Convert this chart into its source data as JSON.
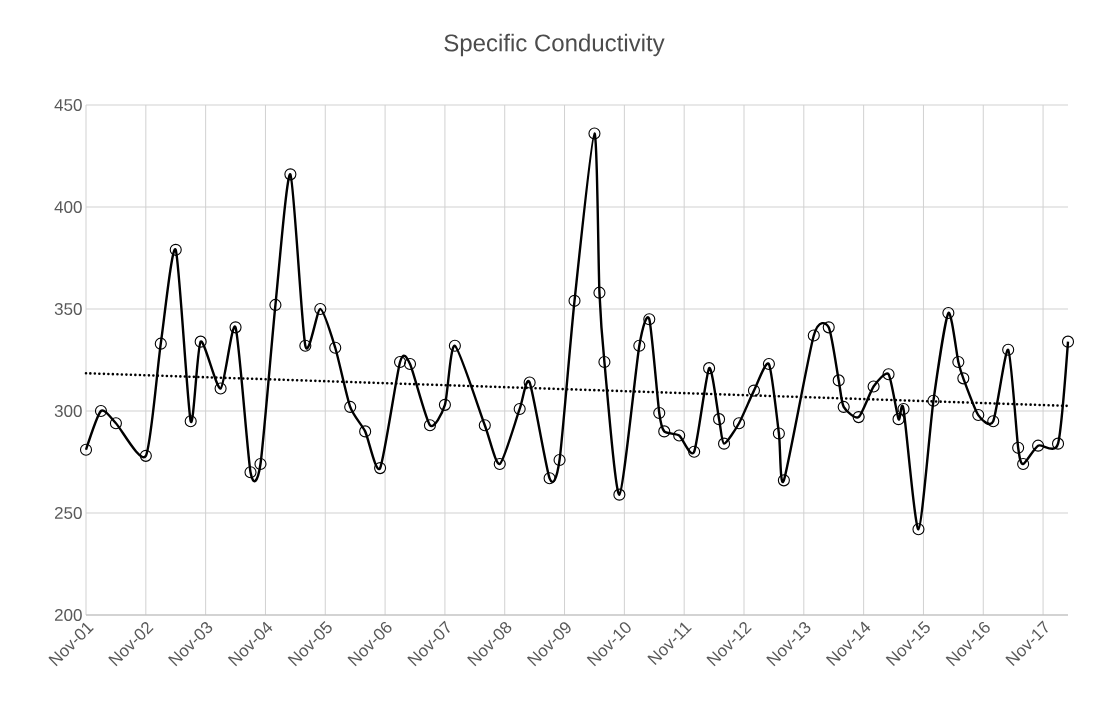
{
  "chart_data": {
    "type": "line",
    "title": "Specific Conductivity",
    "x": [
      "2001-11",
      "2002-02",
      "2002-05",
      "2002-11",
      "2003-02",
      "2003-05",
      "2003-08",
      "2003-10",
      "2004-02",
      "2004-05",
      "2004-08",
      "2004-10",
      "2005-01",
      "2005-04",
      "2005-07",
      "2005-10",
      "2006-01",
      "2006-04",
      "2006-07",
      "2006-10",
      "2007-02",
      "2007-04",
      "2007-08",
      "2007-11",
      "2008-01",
      "2008-07",
      "2008-10",
      "2009-02",
      "2009-04",
      "2009-08",
      "2009-10",
      "2010-01",
      "2010-05",
      "2010-06",
      "2010-07",
      "2010-10",
      "2011-02",
      "2011-04",
      "2011-06",
      "2011-07",
      "2011-10",
      "2012-01",
      "2012-04",
      "2012-06",
      "2012-07",
      "2012-10",
      "2013-01",
      "2013-04",
      "2013-06",
      "2013-07",
      "2014-01",
      "2014-04",
      "2014-06",
      "2014-07",
      "2014-10",
      "2015-01",
      "2015-04",
      "2015-06",
      "2015-07",
      "2015-10",
      "2016-01",
      "2016-04",
      "2016-06",
      "2016-07",
      "2016-10",
      "2017-01",
      "2017-04",
      "2017-06",
      "2017-07",
      "2017-10",
      "2018-02",
      "2018-04"
    ],
    "series": [
      {
        "color": "#000000",
        "values": [
          281,
          300,
          294,
          278,
          333,
          379,
          295,
          334,
          311,
          341,
          270,
          274,
          352,
          416,
          332,
          350,
          331,
          302,
          290,
          272,
          324,
          323,
          293,
          303,
          332,
          293,
          274,
          301,
          314,
          267,
          276,
          354,
          436,
          358,
          324,
          259,
          332,
          345,
          299,
          290,
          288,
          280,
          321,
          296,
          284,
          294,
          310,
          323,
          289,
          266,
          337,
          341,
          315,
          302,
          297,
          312,
          318,
          296,
          301,
          242,
          305,
          348,
          324,
          316,
          298,
          295,
          330,
          282,
          274,
          283,
          284,
          334
        ]
      },
      {
        "type": "line",
        "color": "#000000",
        "x": [
          "2001-11",
          "2018-04"
        ],
        "values": [
          318.5,
          302.5
        ],
        "marker": "none",
        "line_style": "dotted"
      }
    ],
    "marker": "circle",
    "xlim": [
      "2001-11",
      "2018-04"
    ],
    "xticks": [
      {
        "value": "2001-11",
        "label": "Nov-01"
      },
      {
        "value": "2002-11",
        "label": "Nov-02"
      },
      {
        "value": "2003-11",
        "label": "Nov-03"
      },
      {
        "value": "2004-11",
        "label": "Nov-04"
      },
      {
        "value": "2005-11",
        "label": "Nov-05"
      },
      {
        "value": "2006-11",
        "label": "Nov-06"
      },
      {
        "value": "2007-11",
        "label": "Nov-07"
      },
      {
        "value": "2008-11",
        "label": "Nov-08"
      },
      {
        "value": "2009-11",
        "label": "Nov-09"
      },
      {
        "value": "2010-11",
        "label": "Nov-10"
      },
      {
        "value": "2011-11",
        "label": "Nov-11"
      },
      {
        "value": "2012-11",
        "label": "Nov-12"
      },
      {
        "value": "2013-11",
        "label": "Nov-13"
      },
      {
        "value": "2014-11",
        "label": "Nov-14"
      },
      {
        "value": "2015-11",
        "label": "Nov-15"
      },
      {
        "value": "2016-11",
        "label": "Nov-16"
      },
      {
        "value": "2017-11",
        "label": "Nov-17"
      }
    ],
    "ylim": [
      200,
      450
    ],
    "yticks": [
      200,
      250,
      300,
      350,
      400,
      450
    ],
    "grid": true
  }
}
